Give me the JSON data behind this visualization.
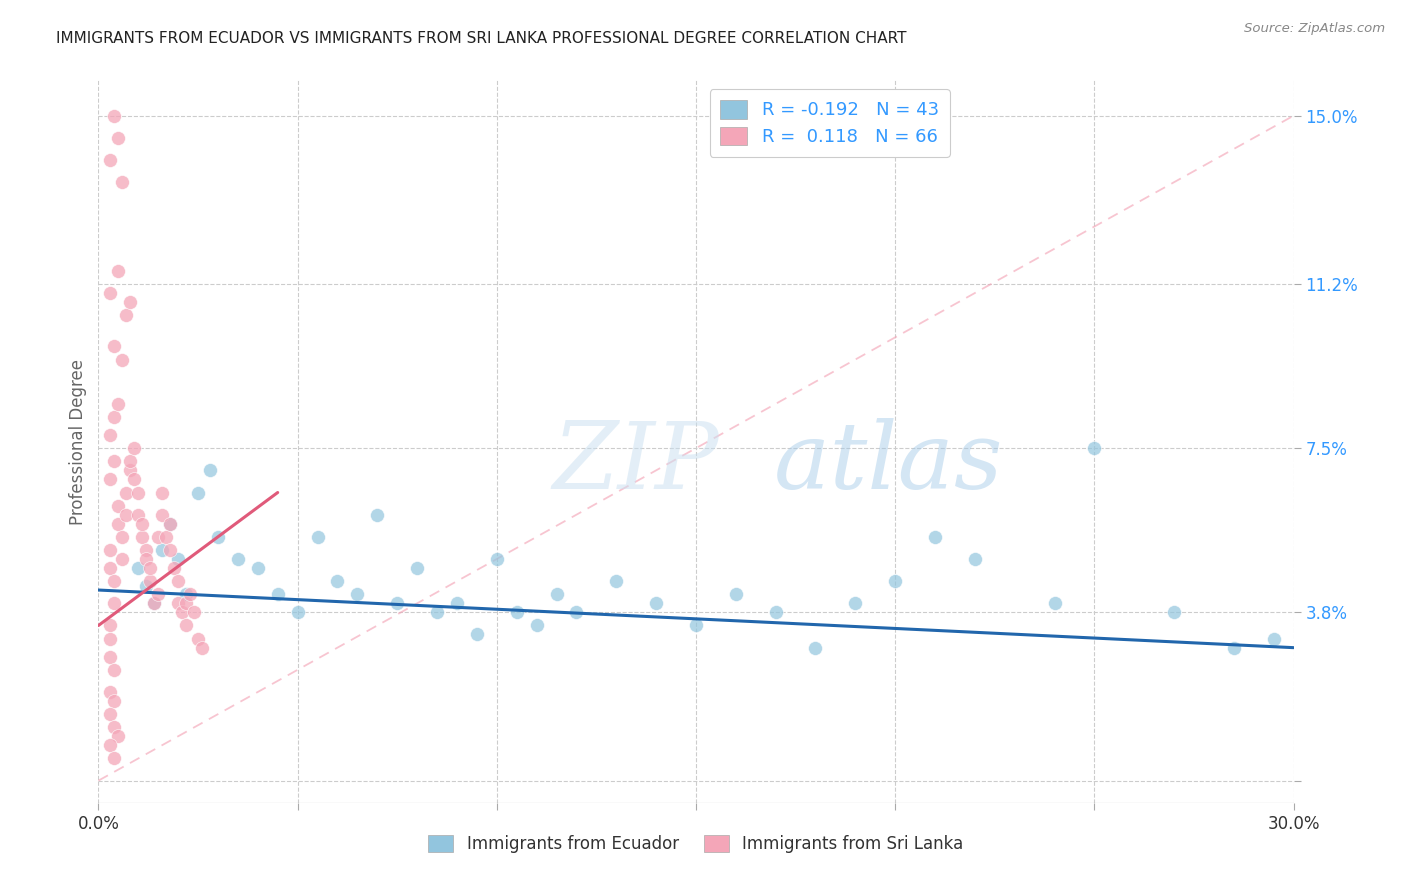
{
  "title": "IMMIGRANTS FROM ECUADOR VS IMMIGRANTS FROM SRI LANKA PROFESSIONAL DEGREE CORRELATION CHART",
  "source": "Source: ZipAtlas.com",
  "ylabel": "Professional Degree",
  "xlim": [
    0.0,
    0.3
  ],
  "ylim": [
    -0.005,
    0.158
  ],
  "ecuador_color": "#92c5de",
  "srilanka_color": "#f4a6b8",
  "srilanka_trend_color": "#e05a7a",
  "ecuador_trend_color": "#2166ac",
  "diag_color": "#f4a6b8",
  "legend_ecuador_label": "R = -0.192   N = 43",
  "legend_srilanka_label": "R =  0.118   N = 66",
  "bottom_legend_ecuador": "Immigrants from Ecuador",
  "bottom_legend_srilanka": "Immigrants from Sri Lanka",
  "watermark_zip": "ZIP",
  "watermark_atlas": "atlas",
  "ecuador_scatter_x": [
    0.01,
    0.012,
    0.014,
    0.016,
    0.018,
    0.02,
    0.022,
    0.025,
    0.028,
    0.03,
    0.035,
    0.04,
    0.045,
    0.05,
    0.055,
    0.06,
    0.065,
    0.07,
    0.075,
    0.08,
    0.085,
    0.09,
    0.095,
    0.1,
    0.105,
    0.11,
    0.115,
    0.12,
    0.13,
    0.14,
    0.15,
    0.16,
    0.17,
    0.18,
    0.19,
    0.2,
    0.21,
    0.22,
    0.24,
    0.25,
    0.27,
    0.285,
    0.295
  ],
  "ecuador_scatter_y": [
    0.048,
    0.044,
    0.04,
    0.052,
    0.058,
    0.05,
    0.042,
    0.065,
    0.07,
    0.055,
    0.05,
    0.048,
    0.042,
    0.038,
    0.055,
    0.045,
    0.042,
    0.06,
    0.04,
    0.048,
    0.038,
    0.04,
    0.033,
    0.05,
    0.038,
    0.035,
    0.042,
    0.038,
    0.045,
    0.04,
    0.035,
    0.042,
    0.038,
    0.03,
    0.04,
    0.045,
    0.055,
    0.05,
    0.04,
    0.075,
    0.038,
    0.03,
    0.032
  ],
  "srilanka_scatter_x": [
    0.003,
    0.003,
    0.004,
    0.004,
    0.005,
    0.005,
    0.006,
    0.006,
    0.007,
    0.007,
    0.008,
    0.008,
    0.009,
    0.009,
    0.01,
    0.01,
    0.011,
    0.011,
    0.012,
    0.012,
    0.013,
    0.013,
    0.014,
    0.015,
    0.015,
    0.016,
    0.016,
    0.017,
    0.018,
    0.018,
    0.019,
    0.02,
    0.02,
    0.021,
    0.022,
    0.022,
    0.023,
    0.024,
    0.025,
    0.026,
    0.003,
    0.004,
    0.005,
    0.006,
    0.007,
    0.008,
    0.003,
    0.004,
    0.005,
    0.006,
    0.003,
    0.004,
    0.005,
    0.003,
    0.004,
    0.003,
    0.004,
    0.003,
    0.004,
    0.003,
    0.004,
    0.005,
    0.003,
    0.004,
    0.003,
    0.003
  ],
  "srilanka_scatter_y": [
    0.048,
    0.052,
    0.04,
    0.045,
    0.058,
    0.062,
    0.05,
    0.055,
    0.06,
    0.065,
    0.07,
    0.072,
    0.068,
    0.075,
    0.065,
    0.06,
    0.055,
    0.058,
    0.052,
    0.05,
    0.045,
    0.048,
    0.04,
    0.042,
    0.055,
    0.06,
    0.065,
    0.055,
    0.058,
    0.052,
    0.048,
    0.04,
    0.045,
    0.038,
    0.04,
    0.035,
    0.042,
    0.038,
    0.032,
    0.03,
    0.11,
    0.098,
    0.115,
    0.095,
    0.105,
    0.108,
    0.14,
    0.15,
    0.145,
    0.135,
    0.078,
    0.082,
    0.085,
    0.068,
    0.072,
    0.028,
    0.025,
    0.02,
    0.018,
    0.015,
    0.012,
    0.01,
    0.008,
    0.005,
    0.032,
    0.035
  ]
}
